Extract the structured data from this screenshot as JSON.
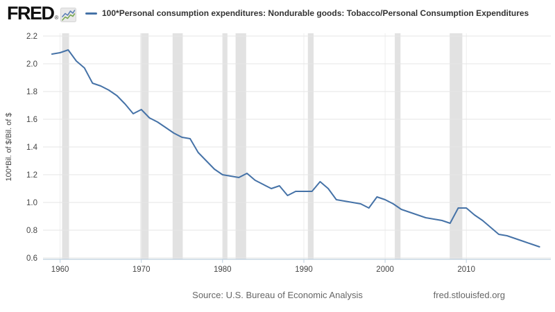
{
  "header": {
    "logo_text": "FRED",
    "logo_registered": "®",
    "series_label": "100*Personal consumption expenditures: Nondurable goods: Tobacco/Personal Consumption Expenditures"
  },
  "footer": {
    "source": "Source: U.S. Bureau of Economic Analysis",
    "site": "fred.stlouisfed.org"
  },
  "chart_data": {
    "type": "line",
    "title": "100*Personal consumption expenditures: Nondurable goods: Tobacco/Personal Consumption Expenditures",
    "xlabel": "",
    "ylabel": "100*Bil. of $/Bil. of $",
    "ylim": [
      0.6,
      2.2
    ],
    "xlim": [
      1957.9,
      2020.4
    ],
    "yticks": [
      0.6,
      0.8,
      1.0,
      1.2,
      1.4,
      1.6,
      1.8,
      2.0,
      2.2
    ],
    "xticks": [
      1960,
      1970,
      1980,
      1990,
      2000,
      2010
    ],
    "grid": true,
    "legend_position": "top-left",
    "line_color": "#4572a7",
    "recession_color": "#e2e2e2",
    "gridline_color": "#e6e6e6",
    "axis_color": "#bccfde",
    "tick_label_color": "#444444",
    "x": [
      1959,
      1960,
      1961,
      1962,
      1963,
      1964,
      1965,
      1966,
      1967,
      1968,
      1969,
      1970,
      1971,
      1972,
      1973,
      1974,
      1975,
      1976,
      1977,
      1978,
      1979,
      1980,
      1981,
      1982,
      1983,
      1984,
      1985,
      1986,
      1987,
      1988,
      1989,
      1990,
      1991,
      1992,
      1993,
      1994,
      1995,
      1996,
      1997,
      1998,
      1999,
      2000,
      2001,
      2002,
      2003,
      2004,
      2005,
      2006,
      2007,
      2008,
      2009,
      2010,
      2011,
      2012,
      2013,
      2014,
      2015,
      2016,
      2017,
      2018,
      2019
    ],
    "values": [
      2.07,
      2.08,
      2.1,
      2.02,
      1.97,
      1.86,
      1.84,
      1.81,
      1.77,
      1.71,
      1.64,
      1.67,
      1.61,
      1.58,
      1.54,
      1.5,
      1.47,
      1.46,
      1.36,
      1.3,
      1.24,
      1.2,
      1.19,
      1.18,
      1.21,
      1.16,
      1.13,
      1.1,
      1.12,
      1.05,
      1.08,
      1.08,
      1.08,
      1.15,
      1.1,
      1.02,
      1.01,
      1.0,
      0.99,
      0.96,
      1.04,
      1.02,
      0.99,
      0.95,
      0.93,
      0.91,
      0.89,
      0.88,
      0.87,
      0.85,
      0.96,
      0.96,
      0.91,
      0.87,
      0.82,
      0.77,
      0.76,
      0.74,
      0.72,
      0.7,
      0.68
    ],
    "recessions": [
      [
        1960.25,
        1961.1
      ],
      [
        1969.9,
        1970.9
      ],
      [
        1973.85,
        1975.1
      ],
      [
        1980.0,
        1980.6
      ],
      [
        1981.6,
        1982.9
      ],
      [
        1990.5,
        1991.2
      ],
      [
        2001.2,
        2001.9
      ],
      [
        2007.95,
        2009.5
      ]
    ]
  }
}
